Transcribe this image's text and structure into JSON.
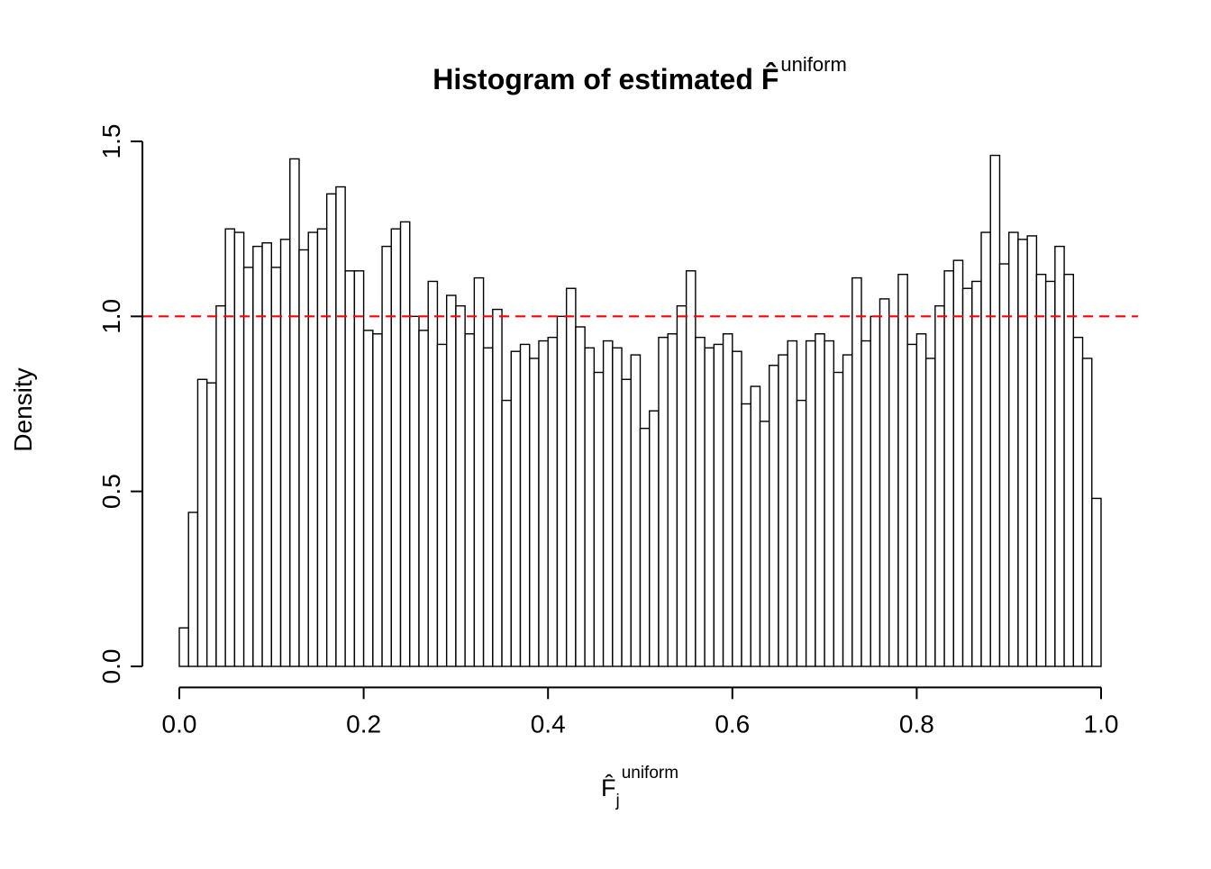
{
  "chart_data": {
    "type": "bar",
    "subtype": "histogram",
    "title": {
      "prefix": "Histogram of estimated",
      "symbol": "F̂",
      "superscript": "uniform"
    },
    "xlabel": {
      "symbol": "F̂",
      "subscript": "j",
      "superscript": "uniform"
    },
    "ylabel": "Density",
    "xlim": [
      0,
      1
    ],
    "ylim": [
      0,
      1.5
    ],
    "bin_start": 0.0,
    "bin_width": 0.01,
    "densities": [
      0.11,
      0.44,
      0.82,
      0.81,
      1.03,
      1.25,
      1.24,
      1.14,
      1.2,
      1.21,
      1.14,
      1.22,
      1.45,
      1.19,
      1.24,
      1.25,
      1.35,
      1.37,
      1.13,
      1.13,
      0.96,
      0.95,
      1.2,
      1.25,
      1.27,
      1.0,
      0.96,
      1.1,
      0.92,
      1.06,
      1.03,
      0.95,
      1.11,
      0.91,
      1.02,
      0.76,
      0.9,
      0.92,
      0.88,
      0.93,
      0.94,
      1.0,
      1.08,
      0.97,
      0.91,
      0.84,
      0.93,
      0.91,
      0.82,
      0.89,
      0.68,
      0.73,
      0.94,
      0.95,
      1.03,
      1.13,
      0.94,
      0.91,
      0.92,
      0.95,
      0.9,
      0.75,
      0.8,
      0.7,
      0.86,
      0.89,
      0.93,
      0.76,
      0.93,
      0.95,
      0.93,
      0.84,
      0.89,
      1.11,
      0.93,
      1.0,
      1.05,
      1.0,
      1.12,
      0.92,
      0.95,
      0.88,
      1.03,
      1.13,
      1.16,
      1.08,
      1.1,
      1.24,
      1.46,
      1.15,
      1.24,
      1.22,
      1.23,
      1.12,
      1.1,
      1.2,
      1.12,
      0.94,
      0.88,
      0.48
    ],
    "x_ticks": [
      0.0,
      0.2,
      0.4,
      0.6,
      0.8,
      1.0
    ],
    "x_tick_labels": [
      "0.0",
      "0.2",
      "0.4",
      "0.6",
      "0.8",
      "1.0"
    ],
    "y_ticks": [
      0.0,
      0.5,
      1.0,
      1.5
    ],
    "y_tick_labels": [
      "0.0",
      "0.5",
      "1.0",
      "1.5"
    ],
    "reference_line": {
      "y": 1.0,
      "color": "#ff0000",
      "style": "dashed"
    },
    "grid": false,
    "legend": "none",
    "bar_fill": "#ffffff",
    "bar_stroke": "#000000",
    "background": "#ffffff"
  }
}
